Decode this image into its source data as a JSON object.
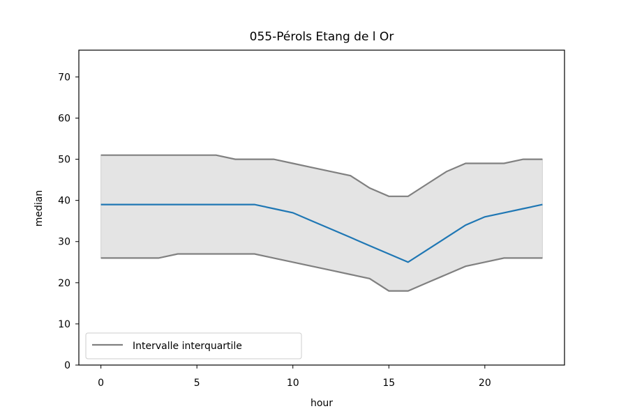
{
  "chart_data": {
    "type": "line",
    "title": "055-Pérols Etang de l Or",
    "xlabel": "hour",
    "ylabel": "median",
    "xlim": [
      -1.15,
      24.15
    ],
    "ylim": [
      0,
      76.5
    ],
    "xticks": [
      0,
      5,
      10,
      15,
      20
    ],
    "yticks": [
      0,
      10,
      20,
      30,
      40,
      50,
      60,
      70
    ],
    "grid": false,
    "legend": {
      "placement": "lower-left",
      "entries": [
        "Intervalle interquartile"
      ]
    },
    "x": [
      0,
      1,
      2,
      3,
      4,
      5,
      6,
      7,
      8,
      9,
      10,
      11,
      12,
      13,
      14,
      15,
      16,
      17,
      18,
      19,
      20,
      21,
      22,
      23
    ],
    "series": [
      {
        "role": "median",
        "color": "#1f77b4",
        "values": [
          39,
          39,
          39,
          39,
          39,
          39,
          39,
          39,
          39,
          38,
          37,
          35,
          33,
          31,
          29,
          27,
          25,
          28,
          31,
          34,
          36,
          37,
          38,
          39
        ]
      },
      {
        "role": "q75",
        "color": "#808080",
        "values": [
          51,
          51,
          51,
          51,
          51,
          51,
          51,
          50,
          50,
          50,
          49,
          48,
          47,
          46,
          43,
          41,
          41,
          44,
          47,
          49,
          49,
          49,
          50,
          50
        ]
      },
      {
        "role": "q25",
        "color": "#808080",
        "values": [
          26,
          26,
          26,
          26,
          27,
          27,
          27,
          27,
          27,
          26,
          25,
          24,
          23,
          22,
          21,
          18,
          18,
          20,
          22,
          24,
          25,
          26,
          26,
          26
        ]
      }
    ],
    "band_color": "#d3d3d3",
    "colors": {
      "axes_face": "#ffffff",
      "band": "#e4e4e4",
      "median": "#1f77b4",
      "quartile": "#808080"
    }
  }
}
